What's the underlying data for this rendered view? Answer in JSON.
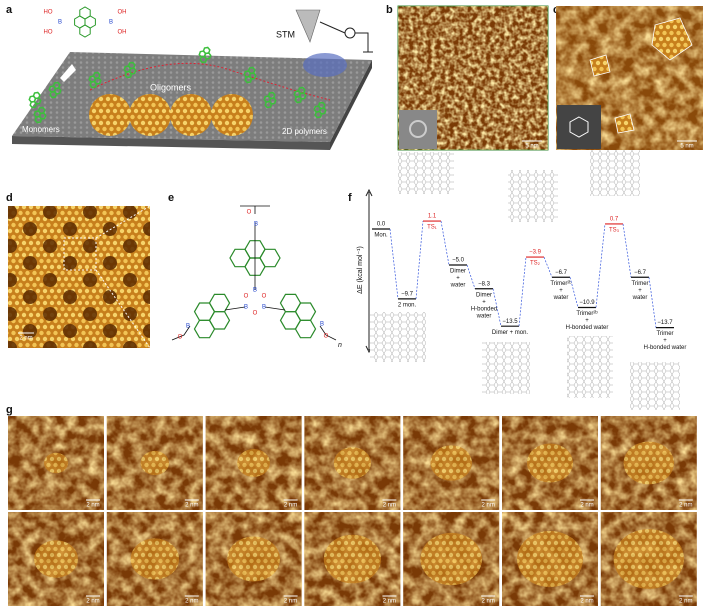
{
  "panels": {
    "a": {
      "label": "a",
      "texts": {
        "stm": "STM",
        "oligomers": "Oligomers",
        "monomers": "Monomers",
        "polymers": "2D polymers"
      },
      "atoms": [
        "HO",
        "B",
        "HO",
        "OH",
        "B",
        "OH"
      ]
    },
    "b": {
      "label": "b",
      "scale_bar": "5 nm"
    },
    "c": {
      "label": "c",
      "scale_bar": "5 nm"
    },
    "d": {
      "label": "d",
      "scale_bar": "2 nm"
    },
    "e": {
      "label": "e",
      "atoms": [
        "O",
        "B",
        "B",
        "O",
        "B",
        "O",
        "B",
        "O",
        "B",
        "O",
        "B",
        "O"
      ],
      "repeat": "n"
    },
    "f": {
      "label": "f",
      "y_axis_label": "ΔE (kcal mol⁻¹)",
      "levels": [
        {
          "value": 0.0,
          "label": "0.0",
          "name": [
            "Mon."
          ],
          "transition": false
        },
        {
          "value": -9.7,
          "label": "−9.7",
          "name": [
            "2 mon."
          ],
          "transition": false
        },
        {
          "value": 1.1,
          "label": "1.1",
          "name": [
            "TS₁"
          ],
          "transition": true
        },
        {
          "value": -5.0,
          "label": "−5.0",
          "name": [
            "Dimer",
            "+",
            "water"
          ],
          "transition": false
        },
        {
          "value": -8.3,
          "label": "−8.3",
          "name": [
            "Dimer",
            "+",
            "H-bonded",
            "water"
          ],
          "transition": false
        },
        {
          "value": -13.5,
          "label": "−13.5",
          "name": [
            "Dimer + mon."
          ],
          "transition": false
        },
        {
          "value": -3.9,
          "label": "−3.9",
          "name": [
            "TS₂"
          ],
          "transition": true
        },
        {
          "value": -6.7,
          "label": "−6.7",
          "name": [
            "Trimer²ᵇ",
            "+",
            "water"
          ],
          "transition": false
        },
        {
          "value": -10.9,
          "label": "−10.9",
          "name": [
            "Trimer²ᵇ",
            "+",
            "H-bonded water"
          ],
          "transition": false
        },
        {
          "value": 0.7,
          "label": "0.7",
          "name": [
            "TS₃"
          ],
          "transition": true
        },
        {
          "value": -6.7,
          "label": "−6.7",
          "name": [
            "Trimer",
            "+",
            "water"
          ],
          "transition": false
        },
        {
          "value": -13.7,
          "label": "−13.7",
          "name": [
            "Trimer",
            "+",
            "H-bonded water"
          ],
          "transition": false
        }
      ]
    },
    "g": {
      "label": "g",
      "scale_bars": [
        "2 nm",
        "2 nm",
        "2 nm",
        "2 nm",
        "2 nm",
        "2 nm",
        "2 nm",
        "2 nm",
        "2 nm",
        "2 nm",
        "2 nm",
        "2 nm",
        "2 nm",
        "2 nm"
      ]
    }
  }
}
